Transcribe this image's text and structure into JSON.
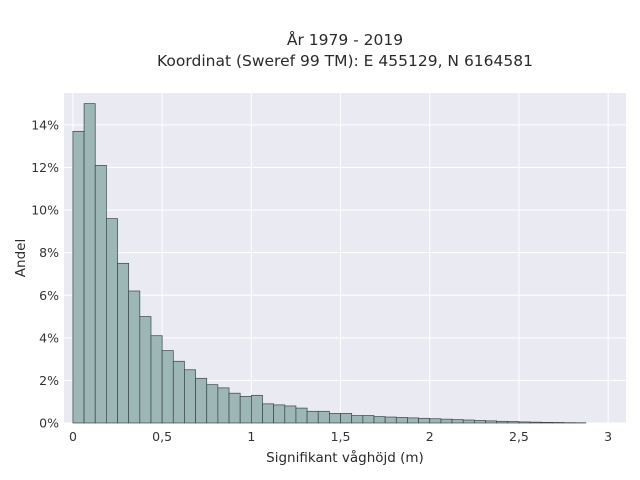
{
  "chart_data": {
    "type": "bar",
    "title_lines": [
      "År 1979 - 2019",
      "Koordinat (Sweref 99 TM): E 455129, N 6164581"
    ],
    "xlabel": "Signifikant våghöjd (m)",
    "ylabel": "Andel",
    "xlim": [
      -0.05,
      3.1
    ],
    "ylim": [
      0,
      15.5
    ],
    "x_ticks": [
      {
        "value": 0,
        "label": "0"
      },
      {
        "value": 0.5,
        "label": "0,5"
      },
      {
        "value": 1,
        "label": "1"
      },
      {
        "value": 1.5,
        "label": "1,5"
      },
      {
        "value": 2,
        "label": "2"
      },
      {
        "value": 2.5,
        "label": "2,5"
      },
      {
        "value": 3,
        "label": "3"
      }
    ],
    "y_ticks": [
      {
        "value": 0,
        "label": "0%"
      },
      {
        "value": 2,
        "label": "2%"
      },
      {
        "value": 4,
        "label": "4%"
      },
      {
        "value": 6,
        "label": "6%"
      },
      {
        "value": 8,
        "label": "8%"
      },
      {
        "value": 10,
        "label": "10%"
      },
      {
        "value": 12,
        "label": "12%"
      },
      {
        "value": 14,
        "label": "14%"
      }
    ],
    "bin_start": 0,
    "bin_width": 0.0625,
    "values": [
      13.7,
      15.0,
      12.1,
      9.6,
      7.5,
      6.2,
      5.0,
      4.1,
      3.4,
      2.9,
      2.5,
      2.1,
      1.8,
      1.65,
      1.4,
      1.25,
      1.3,
      0.9,
      0.85,
      0.8,
      0.7,
      0.55,
      0.55,
      0.45,
      0.45,
      0.35,
      0.35,
      0.3,
      0.28,
      0.26,
      0.24,
      0.22,
      0.2,
      0.18,
      0.16,
      0.14,
      0.12,
      0.1,
      0.08,
      0.07,
      0.05,
      0.04,
      0.03,
      0.025,
      0.015,
      0.01
    ],
    "grid": true,
    "colors": {
      "bar_fill": "#9db6b6",
      "bar_edge": "#3a4545",
      "plot_background": "#eaeaf2",
      "grid": "#ffffff"
    }
  }
}
